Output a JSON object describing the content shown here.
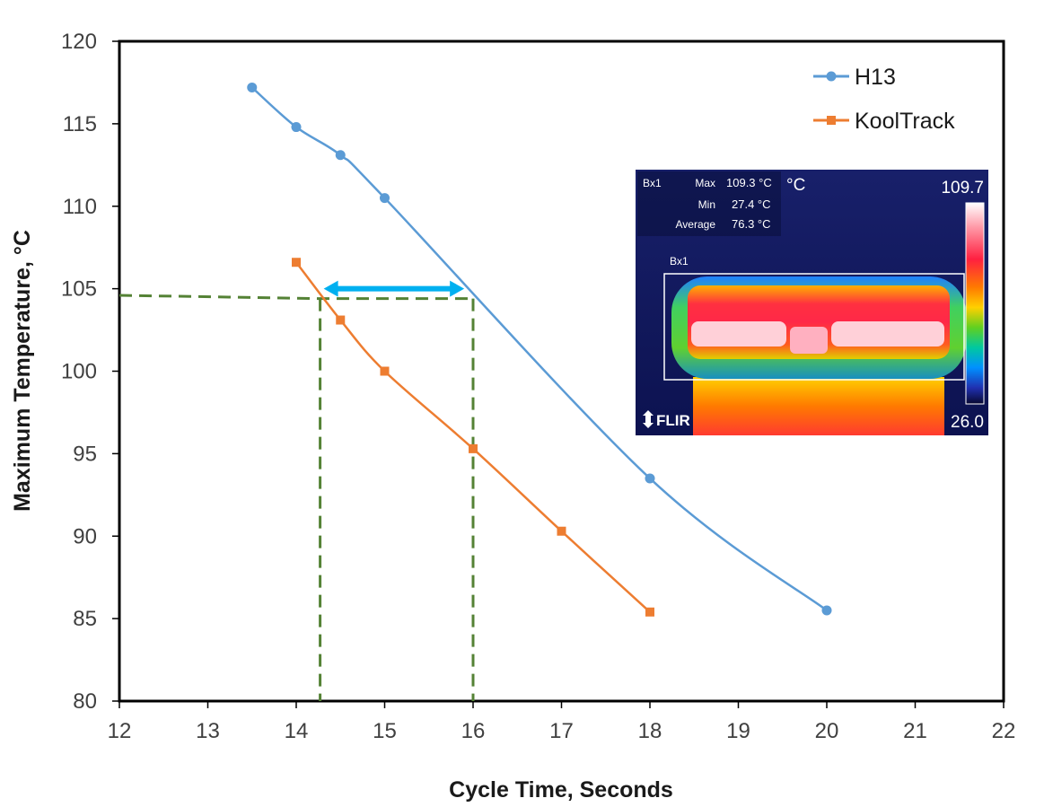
{
  "chart_data": {
    "type": "line",
    "xlabel": "Cycle Time, Seconds",
    "ylabel": "Maximum Temperature, °C",
    "xlim": [
      12,
      22
    ],
    "ylim": [
      80,
      120
    ],
    "x_ticks": [
      "12",
      "13",
      "14",
      "15",
      "16",
      "17",
      "18",
      "19",
      "20",
      "21",
      "22"
    ],
    "y_ticks": [
      "80",
      "85",
      "90",
      "95",
      "100",
      "105",
      "110",
      "115",
      "120"
    ],
    "legend_position": "top-right",
    "series": [
      {
        "name": "H13",
        "color": "#5b9bd5",
        "marker": "circle",
        "points": [
          {
            "x": 13.5,
            "y": 117.2
          },
          {
            "x": 14,
            "y": 114.8
          },
          {
            "x": 14.5,
            "y": 113.1
          },
          {
            "x": 15,
            "y": 110.5
          },
          {
            "x": 18,
            "y": 93.5
          },
          {
            "x": 20,
            "y": 85.5
          }
        ]
      },
      {
        "name": "KoolTrack",
        "color": "#ed7d31",
        "marker": "square",
        "points": [
          {
            "x": 14,
            "y": 106.6
          },
          {
            "x": 14.5,
            "y": 103.1
          },
          {
            "x": 15,
            "y": 100.0
          },
          {
            "x": 16,
            "y": 95.3
          },
          {
            "x": 17,
            "y": 90.3
          },
          {
            "x": 18,
            "y": 85.4
          }
        ]
      }
    ],
    "annotations": {
      "guide_color": "#548235",
      "guide_level": 104.4,
      "guide_x_kooltrack": 14.27,
      "guide_x_h13": 16.0,
      "arrow_color": "#00b0f0",
      "arrow_y": 105.0,
      "arrow_x": [
        14.27,
        15.9
      ]
    },
    "thermal_inset": {
      "box_label": "Bx1",
      "max_label": "Max",
      "max_value": "109.3 °C",
      "min_label": "Min",
      "min_value": "27.4 °C",
      "avg_label": "Average",
      "avg_value": "76.3 °C",
      "unit": "°C",
      "scale_max": "109.7",
      "scale_min": "26.0",
      "region_label": "Bx1",
      "logo": "FLIR"
    }
  }
}
